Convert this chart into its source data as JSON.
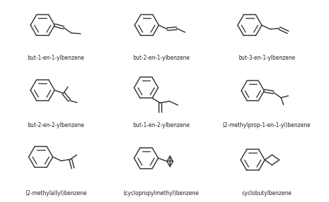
{
  "labels": [
    "but-1-en-1-ylbenzene",
    "but-2-en-1-ylbenzene",
    "but-3-en-1-ylbenzene",
    "but-2-en-2-ylbenzene",
    "but-1-en-2-ylbenzene",
    "(2-methylprop-1-en-1-yl)benzene",
    "(2-methylallyl)benzene",
    "(cyclopropylmethyl)benzene",
    "cyclobutylbenzene"
  ],
  "bg_color": "#ffffff",
  "line_color": "#3a3a3a",
  "label_fontsize": 5.5,
  "line_width": 1.1
}
